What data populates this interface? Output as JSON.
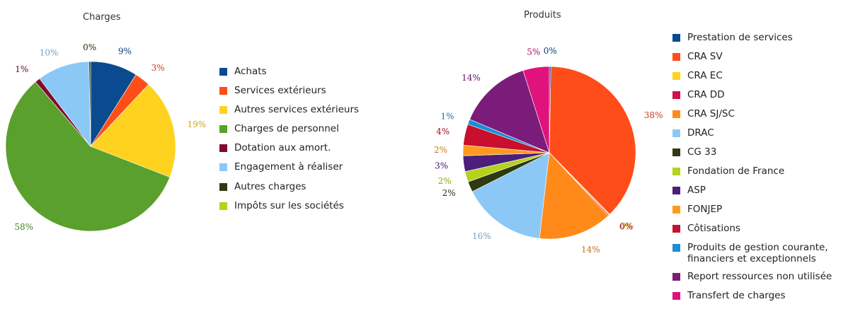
{
  "chart_data": [
    {
      "type": "pie",
      "title": "Charges",
      "legend_position": "right",
      "slices": [
        {
          "label": "Achats",
          "value": 9,
          "display": "9%",
          "color": "#0a4b8f"
        },
        {
          "label": "Services extérieurs",
          "value": 3,
          "display": "3%",
          "color": "#ff4d1a"
        },
        {
          "label": "Autres services extérieurs",
          "value": 19,
          "display": "19%",
          "color": "#ffd21f"
        },
        {
          "label": "Charges de personnel",
          "value": 58,
          "display": "58%",
          "color": "#5aa02c"
        },
        {
          "label": "Dotation aux amort.",
          "value": 1,
          "display": "1%",
          "color": "#7f0d2a"
        },
        {
          "label": "Engagement à réaliser",
          "value": 10,
          "display": "10%",
          "color": "#8cc8f5"
        },
        {
          "label": "Autres charges",
          "value": 0.3,
          "display": "0%",
          "color": "#2e3a12"
        },
        {
          "label": "Impôts sur les sociétés",
          "value": 0,
          "display": "",
          "color": "#b5d21c"
        }
      ]
    },
    {
      "type": "pie",
      "title": "Produits",
      "legend_position": "right",
      "slices": [
        {
          "label": "Prestation de services",
          "value": 0.3,
          "display": "0%",
          "color": "#0a4b8f"
        },
        {
          "label": "CRA SV",
          "value": 38,
          "display": "38%",
          "color": "#ff4d1a"
        },
        {
          "label": "CRA EC",
          "value": 0.2,
          "display": "0%",
          "color": "#ffd21f"
        },
        {
          "label": "CRA DD",
          "value": 0.2,
          "display": "0%",
          "color": "#d60f4a"
        },
        {
          "label": "CRA SJ/SC",
          "value": 14,
          "display": "14%",
          "color": "#ff8a1a"
        },
        {
          "label": "DRAC",
          "value": 16,
          "display": "16%",
          "color": "#8cc8f5"
        },
        {
          "label": "CG 33",
          "value": 2,
          "display": "2%",
          "color": "#2e3a12"
        },
        {
          "label": "Fondation de France",
          "value": 2,
          "display": "2%",
          "color": "#b5d21c"
        },
        {
          "label": "ASP",
          "value": 3,
          "display": "3%",
          "color": "#4b1f7a"
        },
        {
          "label": "FONJEP",
          "value": 2,
          "display": "2%",
          "color": "#ff9a1f"
        },
        {
          "label": "Côtisations",
          "value": 4,
          "display": "4%",
          "color": "#c8102e"
        },
        {
          "label": "Produits de gestion courante,\nfinanciers et exceptionnels",
          "value": 1,
          "display": "1%",
          "color": "#1b8fd6"
        },
        {
          "label": "Report ressources non utilisée",
          "value": 14,
          "display": "14%",
          "color": "#7b1b7a"
        },
        {
          "label": "Transfert de charges",
          "value": 5,
          "display": "5%",
          "color": "#e0137d"
        }
      ]
    }
  ]
}
